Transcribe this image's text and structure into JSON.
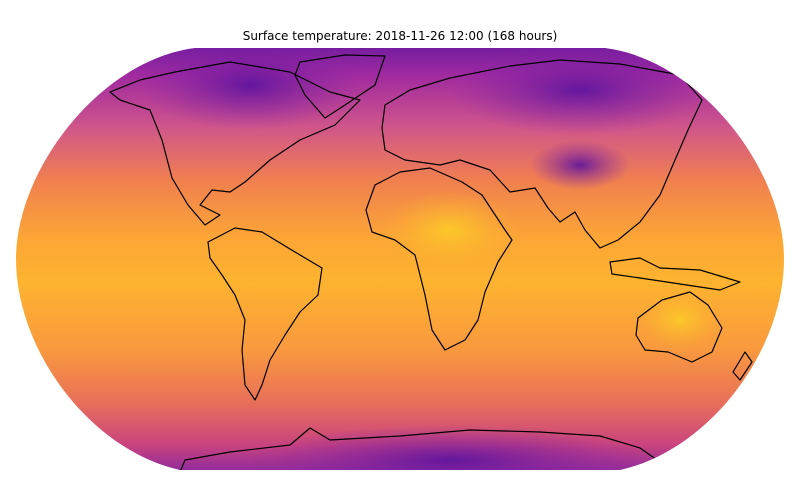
{
  "title": "Surface temperature: 2018-11-26 12:00 (168 hours)"
}
